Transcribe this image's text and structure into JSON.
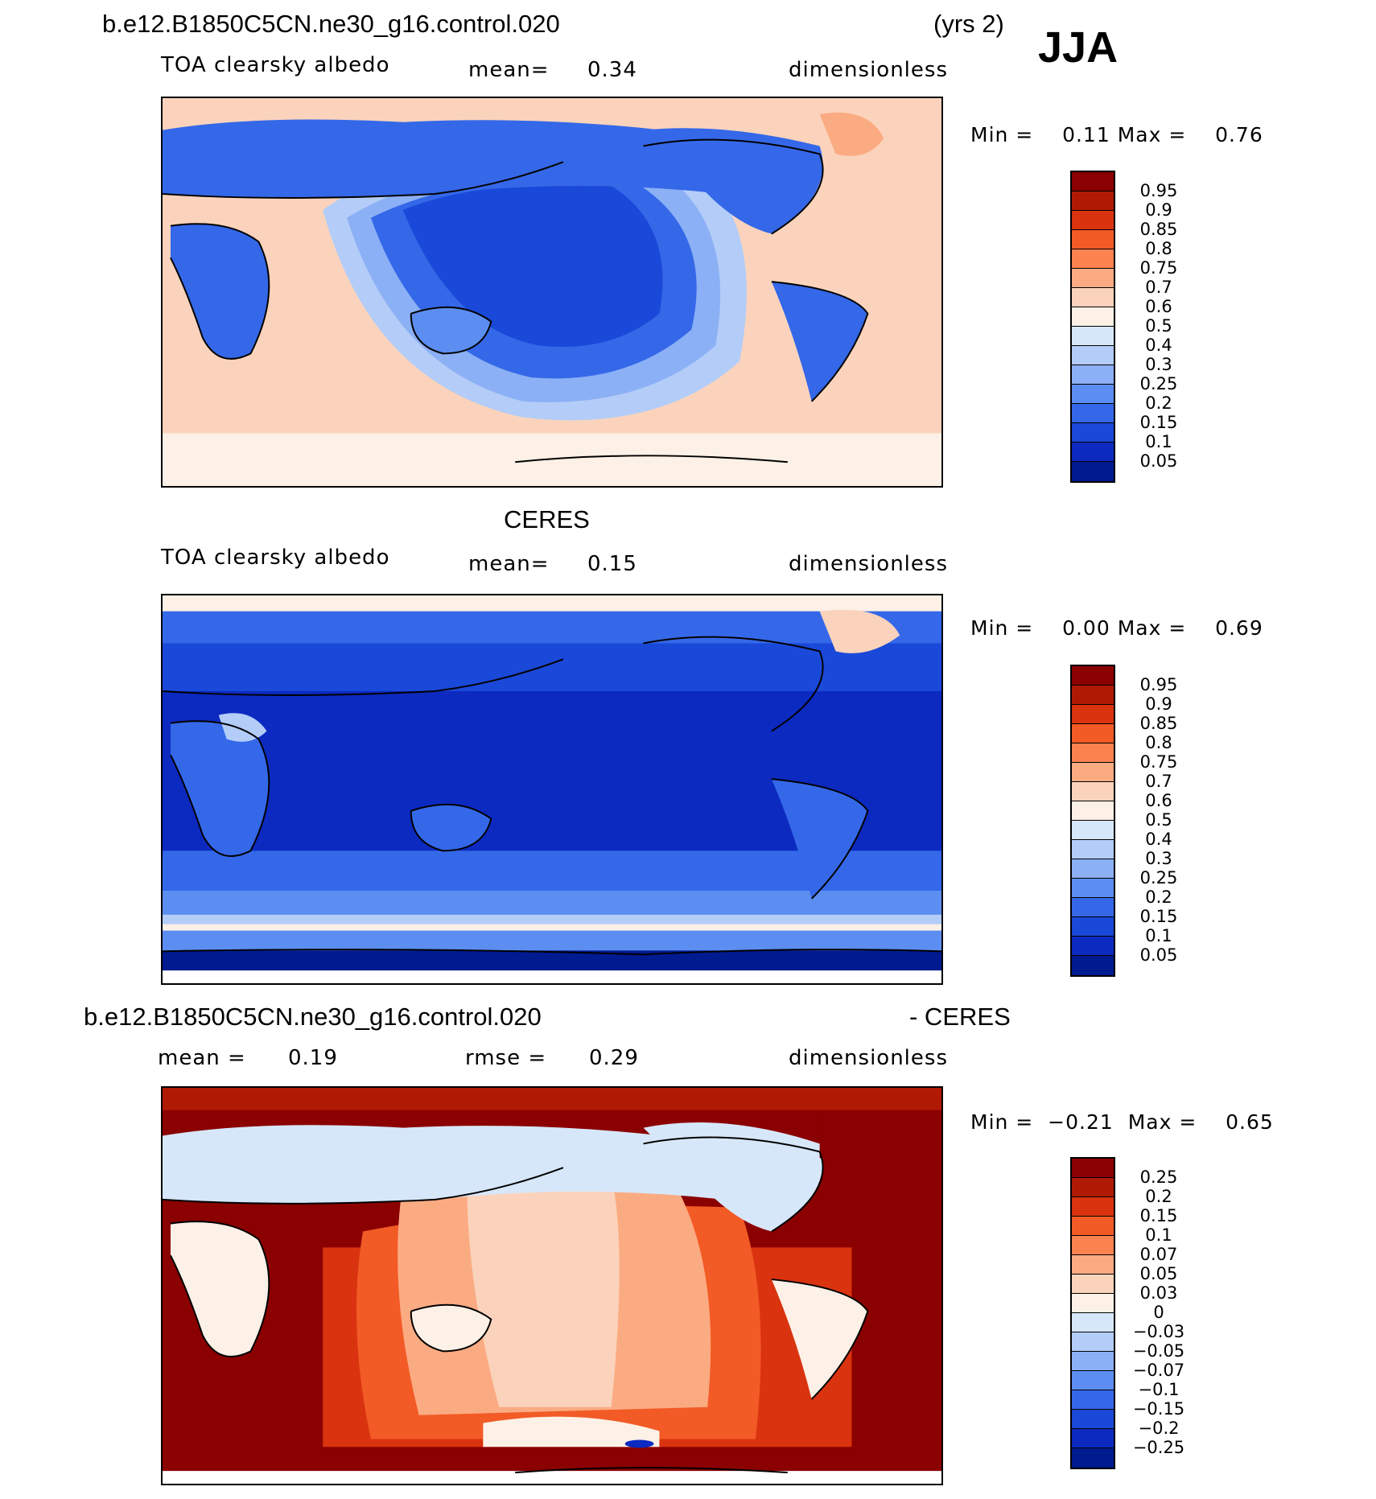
{
  "header": {
    "case_name": "b.e12.B1850C5CN.ne30_g16.control.020",
    "years": "(yrs 2)",
    "season": "JJA"
  },
  "panels": [
    {
      "name": "model",
      "variable": "TOA clearsky albedo",
      "stat_label": "mean=",
      "stat_value": "0.34",
      "units": "dimensionless",
      "min_label": "Min =",
      "min_value": "0.11",
      "max_label": "Max =",
      "max_value": "0.76",
      "legend": [
        "0.95",
        "0.9",
        "0.85",
        "0.8",
        "0.75",
        "0.7",
        "0.6",
        "0.5",
        "0.4",
        "0.3",
        "0.25",
        "0.2",
        "0.15",
        "0.1",
        "0.05"
      ]
    },
    {
      "name": "obs",
      "title": "CERES",
      "variable": "TOA clearsky albedo",
      "stat_label": "mean=",
      "stat_value": "0.15",
      "units": "dimensionless",
      "min_label": "Min =",
      "min_value": "0.00",
      "max_label": "Max =",
      "max_value": "0.69",
      "legend": [
        "0.95",
        "0.9",
        "0.85",
        "0.8",
        "0.75",
        "0.7",
        "0.6",
        "0.5",
        "0.4",
        "0.3",
        "0.25",
        "0.2",
        "0.15",
        "0.1",
        "0.05"
      ]
    },
    {
      "name": "diff",
      "title_left": "b.e12.B1850C5CN.ne30_g16.control.020",
      "title_right": "- CERES",
      "stat_label": "mean =",
      "stat_value": "0.19",
      "stat2_label": "rmse =",
      "stat2_value": "0.29",
      "units": "dimensionless",
      "min_label": "Min =",
      "min_value": "−0.21",
      "max_label": "Max =",
      "max_value": "0.65",
      "legend": [
        "0.25",
        "0.2",
        "0.15",
        "0.1",
        "0.07",
        "0.05",
        "0.03",
        "0",
        "−0.03",
        "−0.05",
        "−0.07",
        "−0.1",
        "−0.15",
        "−0.2",
        "−0.25"
      ]
    }
  ],
  "colors": {
    "seq_palette": [
      "#8b0000",
      "#b01a05",
      "#d9330f",
      "#f25a26",
      "#fc8250",
      "#fbab82",
      "#fbd3bc",
      "#fdf0e6",
      "#d7e7fa",
      "#b3cdf8",
      "#8cb0f5",
      "#5b8ef0",
      "#3468e8",
      "#1a48d8",
      "#0c2ac0",
      "#001a90",
      "#00007a"
    ],
    "div_palette": [
      "#8b0000",
      "#b01a05",
      "#d9330f",
      "#f25a26",
      "#fc8250",
      "#fbab82",
      "#fbd3bc",
      "#fdf0e6",
      "#d7e7fa",
      "#b3cdf8",
      "#8cb0f5",
      "#5b8ef0",
      "#3468e8",
      "#1a48d8",
      "#0c2ac0",
      "#001a90"
    ]
  }
}
